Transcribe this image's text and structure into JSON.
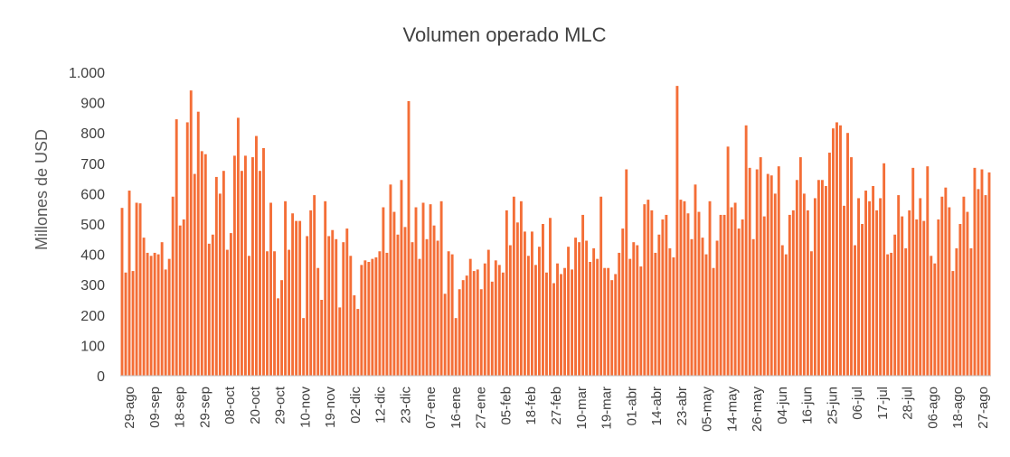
{
  "chart_data": {
    "type": "bar",
    "title": "Volumen operado MLC",
    "xlabel": "",
    "ylabel": "Millones de USD",
    "ylim": [
      0,
      1000
    ],
    "yticks": [
      0,
      100,
      200,
      300,
      400,
      500,
      600,
      700,
      800,
      900,
      1000
    ],
    "ytick_labels": [
      "0",
      "100",
      "200",
      "300",
      "400",
      "500",
      "600",
      "700",
      "800",
      "900",
      "1.000"
    ],
    "xtick_labels": [
      "29-ago",
      "09-sep",
      "18-sep",
      "29-sep",
      "08-oct",
      "20-oct",
      "29-oct",
      "10-nov",
      "19-nov",
      "02-dic",
      "12-dic",
      "23-dic",
      "07-ene",
      "16-ene",
      "27-ene",
      "05-feb",
      "18-feb",
      "27-feb",
      "10-mar",
      "19-mar",
      "01-abr",
      "14-abr",
      "23-abr",
      "05-may",
      "14-may",
      "26-may",
      "04-jun",
      "16-jun",
      "25-jun",
      "06-jul",
      "17-jul",
      "28-jul",
      "06-ago",
      "18-ago",
      "27-ago"
    ],
    "bar_color": "#F46E37",
    "grid": false,
    "legend": "none",
    "values": [
      553,
      340,
      610,
      345,
      570,
      568,
      455,
      405,
      395,
      405,
      400,
      440,
      350,
      385,
      590,
      845,
      495,
      515,
      835,
      940,
      665,
      870,
      740,
      730,
      435,
      465,
      655,
      600,
      675,
      415,
      470,
      725,
      850,
      675,
      725,
      395,
      720,
      790,
      675,
      750,
      410,
      570,
      410,
      255,
      315,
      575,
      415,
      535,
      510,
      510,
      190,
      460,
      545,
      595,
      355,
      250,
      575,
      460,
      480,
      450,
      225,
      440,
      485,
      395,
      265,
      220,
      365,
      380,
      375,
      385,
      390,
      410,
      555,
      405,
      630,
      540,
      465,
      645,
      490,
      905,
      440,
      555,
      385,
      570,
      450,
      565,
      495,
      445,
      575,
      270,
      410,
      400,
      190,
      285,
      315,
      330,
      385,
      345,
      350,
      285,
      370,
      415,
      310,
      380,
      365,
      340,
      545,
      430,
      590,
      505,
      575,
      475,
      395,
      475,
      365,
      425,
      500,
      340,
      520,
      305,
      370,
      335,
      355,
      425,
      350,
      455,
      440,
      530,
      445,
      375,
      420,
      385,
      590,
      355,
      355,
      315,
      335,
      405,
      485,
      680,
      385,
      440,
      430,
      360,
      565,
      580,
      545,
      405,
      465,
      515,
      530,
      420,
      390,
      955,
      580,
      575,
      535,
      450,
      630,
      540,
      455,
      400,
      575,
      355,
      445,
      530,
      530,
      755,
      555,
      570,
      485,
      515,
      825,
      685,
      450,
      680,
      720,
      525,
      665,
      660,
      600,
      690,
      430,
      400,
      530,
      545,
      645,
      720,
      600,
      545,
      410,
      585,
      645,
      645,
      625,
      735,
      815,
      835,
      825,
      560,
      800,
      720,
      430,
      585,
      500,
      610,
      575,
      625,
      545,
      585,
      700,
      400,
      405,
      465,
      595,
      525,
      420,
      545,
      685,
      515,
      585,
      510,
      690,
      395,
      370,
      515,
      590,
      620,
      555,
      345,
      420,
      500,
      590,
      540,
      420,
      685,
      615,
      680,
      595,
      670
    ]
  }
}
